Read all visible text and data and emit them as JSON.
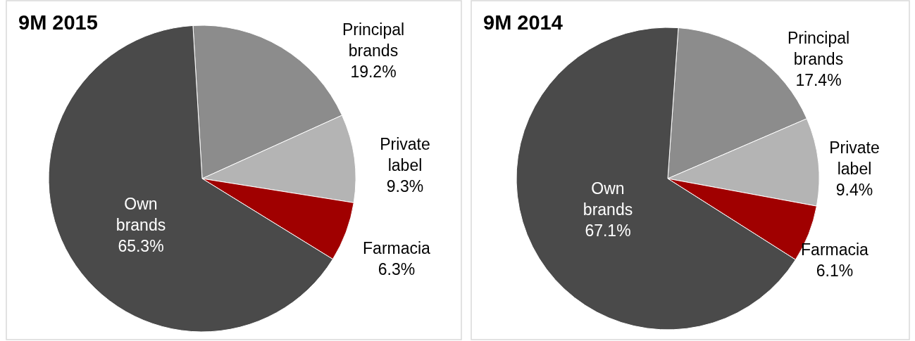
{
  "chart_data": [
    {
      "type": "pie",
      "title": "9M 2015",
      "categories": [
        "Principal brands",
        "Private label",
        "Farmacia",
        "Own brands"
      ],
      "values": [
        19.2,
        9.3,
        6.3,
        65.3
      ],
      "value_labels": [
        "19.2%",
        "9.3%",
        "6.3%",
        "65.3%"
      ],
      "colors": [
        "#8c8c8c",
        "#b4b4b4",
        "#a00000",
        "#4a4a4a"
      ]
    },
    {
      "type": "pie",
      "title": "9M 2014",
      "categories": [
        "Principal brands",
        "Private label",
        "Farmacia",
        "Own brands"
      ],
      "values": [
        17.4,
        9.4,
        6.1,
        67.1
      ],
      "value_labels": [
        "17.4%",
        "9.4%",
        "6.1%",
        "67.1%"
      ],
      "colors": [
        "#8c8c8c",
        "#b4b4b4",
        "#a00000",
        "#4a4a4a"
      ]
    }
  ]
}
